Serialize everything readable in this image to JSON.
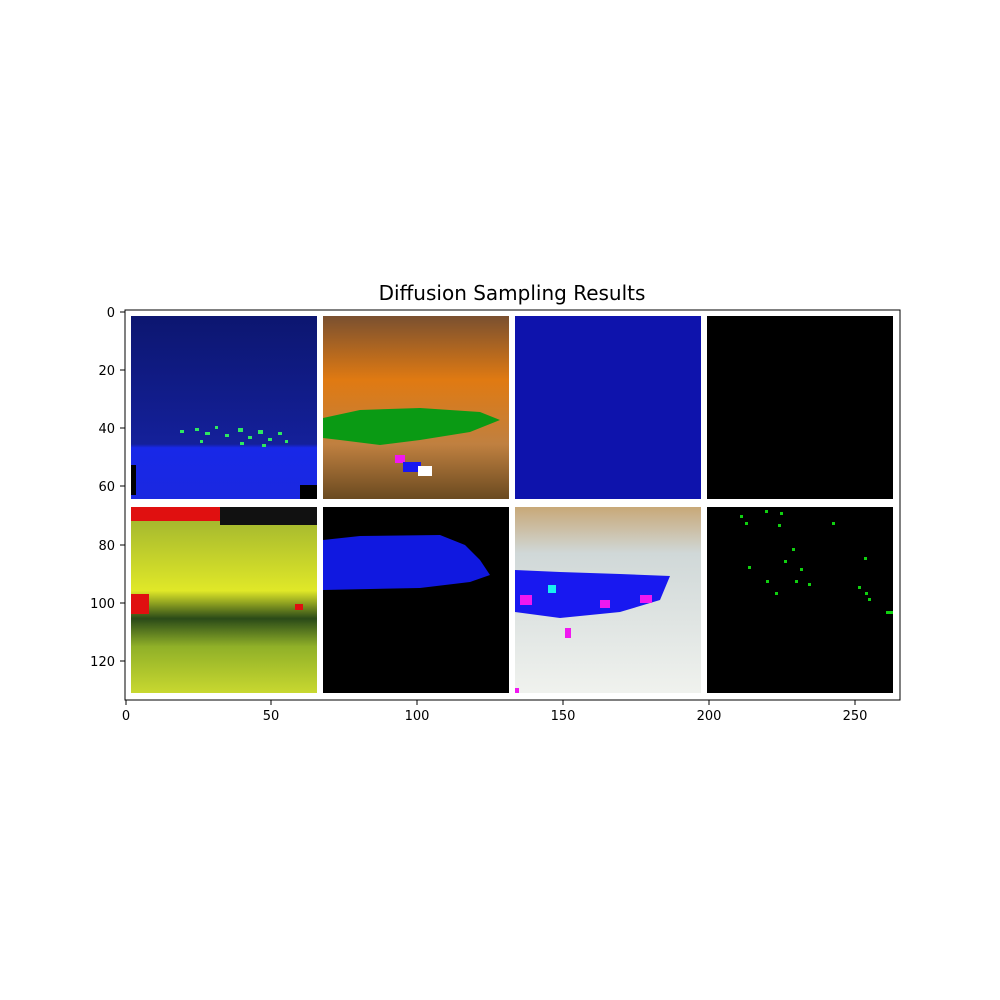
{
  "figure": {
    "title": "Diffusion Sampling Results"
  },
  "axes": {
    "x_ticks": [
      0,
      50,
      100,
      150,
      200,
      250
    ],
    "y_ticks": [
      0,
      20,
      40,
      60,
      80,
      100,
      120
    ],
    "xlim": [
      0,
      266
    ],
    "ylim": [
      134,
      0
    ]
  },
  "grid": {
    "rows": 2,
    "cols": 4,
    "tile_size": 64,
    "padding": 2,
    "border_color": "#ffffff"
  },
  "tiles": [
    {
      "name": "tile-1",
      "bg": "#0f1a7a",
      "desc_colors": [
        "#101880",
        "#1a2ae0",
        "#2ee860"
      ]
    },
    {
      "name": "tile-2",
      "bg": "#c46a1e",
      "desc_colors": [
        "#8a5028",
        "#e07a10",
        "#0a9a14"
      ]
    },
    {
      "name": "tile-3",
      "bg": "#0a10a0",
      "desc_colors": [
        "#0a10a0"
      ]
    },
    {
      "name": "tile-4",
      "bg": "#000000",
      "desc_colors": [
        "#000000"
      ]
    },
    {
      "name": "tile-5",
      "bg": "#a8c82a",
      "desc_colors": [
        "#d8e020",
        "#2a4a10",
        "#e01010"
      ]
    },
    {
      "name": "tile-6",
      "bg": "#000000",
      "desc_colors": [
        "#1018e0"
      ]
    },
    {
      "name": "tile-7",
      "bg": "#e8ece8",
      "desc_colors": [
        "#c8a878",
        "#1818f0",
        "#f018f0"
      ]
    },
    {
      "name": "tile-8",
      "bg": "#000000",
      "desc_colors": [
        "#10d010"
      ]
    }
  ]
}
